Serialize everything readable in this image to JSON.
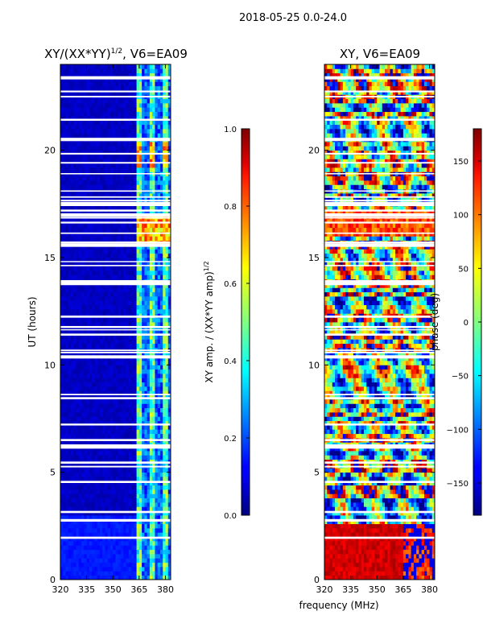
{
  "figure": {
    "suptitle": "2018-05-25 0.0-24.0",
    "shared_xlabel": "frequency (MHz)"
  },
  "chart_data": [
    {
      "type": "heatmap",
      "title_main": "XY/(XX*YY)",
      "title_sup": "1/2",
      "title_rest": ", V6=EA09",
      "ylabel": "UT (hours)",
      "xlim": [
        320,
        383
      ],
      "ylim": [
        0,
        24
      ],
      "xticks": [
        "320",
        "335",
        "350",
        "365",
        "380"
      ],
      "xtick_values": [
        320,
        335,
        350,
        365,
        380
      ],
      "yticks": [
        "0",
        "5",
        "10",
        "15",
        "20"
      ],
      "ytick_values": [
        0,
        5,
        10,
        15,
        20
      ],
      "colorbar": {
        "label_main": "XY amp. / (XX*YY amp)",
        "label_sup": "1/2",
        "range": [
          0.0,
          1.0
        ],
        "ticks": [
          "0.0",
          "0.2",
          "0.4",
          "0.6",
          "0.8",
          "1.0"
        ],
        "tick_values": [
          0.0,
          0.2,
          0.4,
          0.6,
          0.8,
          1.0
        ],
        "colormap": "jet"
      }
    },
    {
      "type": "heatmap",
      "title": "XY, V6=EA09",
      "xlim": [
        320,
        383
      ],
      "ylim": [
        0,
        24
      ],
      "xticks": [
        "320",
        "335",
        "350",
        "365",
        "380"
      ],
      "xtick_values": [
        320,
        335,
        350,
        365,
        380
      ],
      "yticks": [
        "0",
        "5",
        "10",
        "15",
        "20"
      ],
      "ytick_values": [
        0,
        5,
        10,
        15,
        20
      ],
      "colorbar": {
        "label": "phase (deg)",
        "range": [
          -180,
          180
        ],
        "ticks": [
          "−150",
          "−100",
          "−50",
          "0",
          "50",
          "100",
          "150"
        ],
        "tick_values": [
          -150,
          -100,
          -50,
          0,
          50,
          100,
          150
        ],
        "colormap": "jet"
      }
    }
  ]
}
